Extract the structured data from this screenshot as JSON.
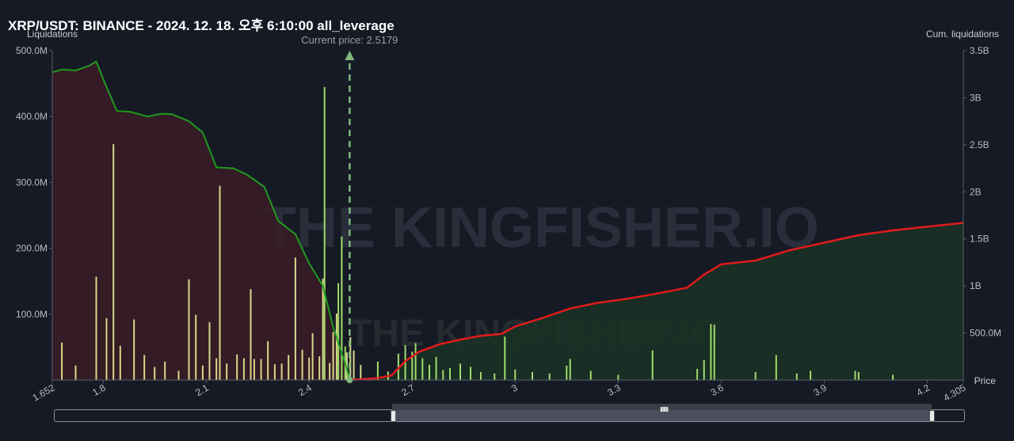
{
  "title": "XRP/USDT: BINANCE - 2024. 12. 18. 오후 6:10:00 all_leverage",
  "current_price_label": "Current price: 2.5179",
  "watermark": "THE KINGFISHER.IO",
  "colors": {
    "background": "#161a25",
    "short_bar": "#d6d88a",
    "long_bar": "#9fdc6c",
    "small_bar": "#6b7db3",
    "cum_left_line": "#1f9a1f",
    "cum_left_fill": "#3a1c26",
    "cum_right_line": "#e21b1b",
    "cum_right_fill": "#1a3224",
    "current_price_line": "#7fb87f"
  },
  "chart_data": {
    "type": "bar",
    "title": "XRP/USDT: BINANCE - 2024. 12. 18. 오후 6:10:00 all_leverage",
    "xlabel": "Price",
    "ylabel": "Liquidations",
    "y2label": "Cum. liquidations",
    "xlim": [
      1.652,
      4.305
    ],
    "ylim": [
      0,
      500000000
    ],
    "y2lim": [
      0,
      3500000000
    ],
    "x_ticks": [
      "1.652",
      "1.8",
      "2.1",
      "2.4",
      "2.7",
      "3",
      "3.3",
      "3.6",
      "3.9",
      "4.2",
      "4.305"
    ],
    "x_tick_values": [
      1.652,
      1.8,
      2.1,
      2.4,
      2.7,
      3.0,
      3.3,
      3.6,
      3.9,
      4.2,
      4.305
    ],
    "y_ticks": [
      "500.0M",
      "400.0M",
      "300.0M",
      "200.0M",
      "100.0M"
    ],
    "y_tick_values": [
      500000000,
      400000000,
      300000000,
      200000000,
      100000000
    ],
    "y2_ticks": [
      "3.5B",
      "3B",
      "2.5B",
      "2B",
      "1.5B",
      "1B",
      "500.0M"
    ],
    "y2_tick_values": [
      3500000000,
      3000000000,
      2500000000,
      2000000000,
      1500000000,
      1000000000,
      500000000
    ],
    "current_price": 2.5179,
    "series": [
      {
        "kind": "bars",
        "side": "below_price",
        "points": [
          [
            1.68,
            57000000
          ],
          [
            1.72,
            22000000
          ],
          [
            1.78,
            157000000
          ],
          [
            1.81,
            94000000
          ],
          [
            1.83,
            358000000
          ],
          [
            1.85,
            52000000
          ],
          [
            1.89,
            92000000
          ],
          [
            1.92,
            38000000
          ],
          [
            1.95,
            20000000
          ],
          [
            1.98,
            28000000
          ],
          [
            2.02,
            14000000
          ],
          [
            2.05,
            153000000
          ],
          [
            2.07,
            99000000
          ],
          [
            2.09,
            22000000
          ],
          [
            2.11,
            88000000
          ],
          [
            2.13,
            33000000
          ],
          [
            2.14,
            295000000
          ],
          [
            2.16,
            25000000
          ],
          [
            2.19,
            39000000
          ],
          [
            2.21,
            33000000
          ],
          [
            2.23,
            138000000
          ],
          [
            2.24,
            32000000
          ],
          [
            2.26,
            32000000
          ],
          [
            2.28,
            59000000
          ],
          [
            2.3,
            24000000
          ],
          [
            2.32,
            25000000
          ],
          [
            2.34,
            38000000
          ],
          [
            2.36,
            186000000
          ],
          [
            2.38,
            46000000
          ],
          [
            2.4,
            34000000
          ],
          [
            2.41,
            71000000
          ],
          [
            2.43,
            36000000
          ],
          [
            2.44,
            154000000
          ],
          [
            2.46,
            26000000
          ],
          [
            2.47,
            73000000
          ],
          [
            2.48,
            101000000
          ],
          [
            2.51,
            42000000
          ],
          [
            2.52,
            65000000
          ],
          [
            2.53,
            45000000
          ],
          [
            2.55,
            23000000
          ]
        ]
      },
      {
        "kind": "bars",
        "side": "below_price_green",
        "points": [
          [
            2.445,
            445000000
          ],
          [
            2.485,
            147000000
          ],
          [
            2.495,
            218000000
          ],
          [
            2.505,
            51000000
          ]
        ]
      },
      {
        "kind": "bars",
        "side": "above_price",
        "points": [
          [
            2.6,
            28000000
          ],
          [
            2.63,
            13000000
          ],
          [
            2.66,
            40000000
          ],
          [
            2.68,
            53000000
          ],
          [
            2.7,
            43000000
          ],
          [
            2.71,
            56000000
          ],
          [
            2.73,
            33000000
          ],
          [
            2.75,
            23000000
          ],
          [
            2.77,
            35000000
          ],
          [
            2.79,
            15000000
          ],
          [
            2.81,
            18000000
          ],
          [
            2.84,
            25000000
          ],
          [
            2.87,
            20000000
          ],
          [
            2.9,
            12000000
          ],
          [
            2.94,
            10000000
          ],
          [
            2.97,
            66000000
          ],
          [
            3.0,
            16000000
          ],
          [
            3.05,
            12000000
          ],
          [
            3.1,
            10000000
          ],
          [
            3.15,
            22000000
          ],
          [
            3.16,
            32000000
          ],
          [
            3.22,
            14000000
          ],
          [
            3.3,
            8000000
          ],
          [
            3.4,
            45000000
          ],
          [
            3.53,
            17000000
          ],
          [
            3.55,
            30000000
          ],
          [
            3.57,
            85000000
          ],
          [
            3.58,
            84000000
          ],
          [
            3.7,
            12000000
          ],
          [
            3.76,
            38000000
          ],
          [
            3.82,
            10000000
          ],
          [
            3.86,
            14000000
          ],
          [
            3.99,
            14000000
          ],
          [
            4.0,
            12000000
          ],
          [
            4.1,
            8000000
          ]
        ]
      },
      {
        "kind": "line",
        "name": "cum_below",
        "axis": "y2",
        "points": [
          [
            1.652,
            3270000000
          ],
          [
            1.68,
            3300000000
          ],
          [
            1.72,
            3290000000
          ],
          [
            1.76,
            3340000000
          ],
          [
            1.78,
            3385000000
          ],
          [
            1.8,
            3200000000
          ],
          [
            1.84,
            2860000000
          ],
          [
            1.88,
            2850000000
          ],
          [
            1.93,
            2800000000
          ],
          [
            1.97,
            2830000000
          ],
          [
            2.0,
            2825000000
          ],
          [
            2.05,
            2750000000
          ],
          [
            2.09,
            2630000000
          ],
          [
            2.13,
            2260000000
          ],
          [
            2.18,
            2250000000
          ],
          [
            2.22,
            2180000000
          ],
          [
            2.27,
            2050000000
          ],
          [
            2.31,
            1690000000
          ],
          [
            2.36,
            1550000000
          ],
          [
            2.4,
            1240000000
          ],
          [
            2.44,
            1000000000
          ],
          [
            2.47,
            560000000
          ],
          [
            2.51,
            120000000
          ],
          [
            2.518,
            0
          ]
        ]
      },
      {
        "kind": "line",
        "name": "cum_above",
        "axis": "y2",
        "points": [
          [
            2.518,
            0
          ],
          [
            2.6,
            20000000
          ],
          [
            2.64,
            50000000
          ],
          [
            2.68,
            200000000
          ],
          [
            2.72,
            300000000
          ],
          [
            2.78,
            380000000
          ],
          [
            2.84,
            430000000
          ],
          [
            2.9,
            470000000
          ],
          [
            2.96,
            490000000
          ],
          [
            3.0,
            570000000
          ],
          [
            3.08,
            660000000
          ],
          [
            3.16,
            760000000
          ],
          [
            3.24,
            820000000
          ],
          [
            3.32,
            860000000
          ],
          [
            3.4,
            910000000
          ],
          [
            3.5,
            980000000
          ],
          [
            3.55,
            1120000000
          ],
          [
            3.6,
            1230000000
          ],
          [
            3.7,
            1270000000
          ],
          [
            3.8,
            1380000000
          ],
          [
            3.9,
            1460000000
          ],
          [
            4.0,
            1540000000
          ],
          [
            4.1,
            1590000000
          ],
          [
            4.2,
            1630000000
          ],
          [
            4.305,
            1670000000
          ]
        ]
      }
    ]
  }
}
